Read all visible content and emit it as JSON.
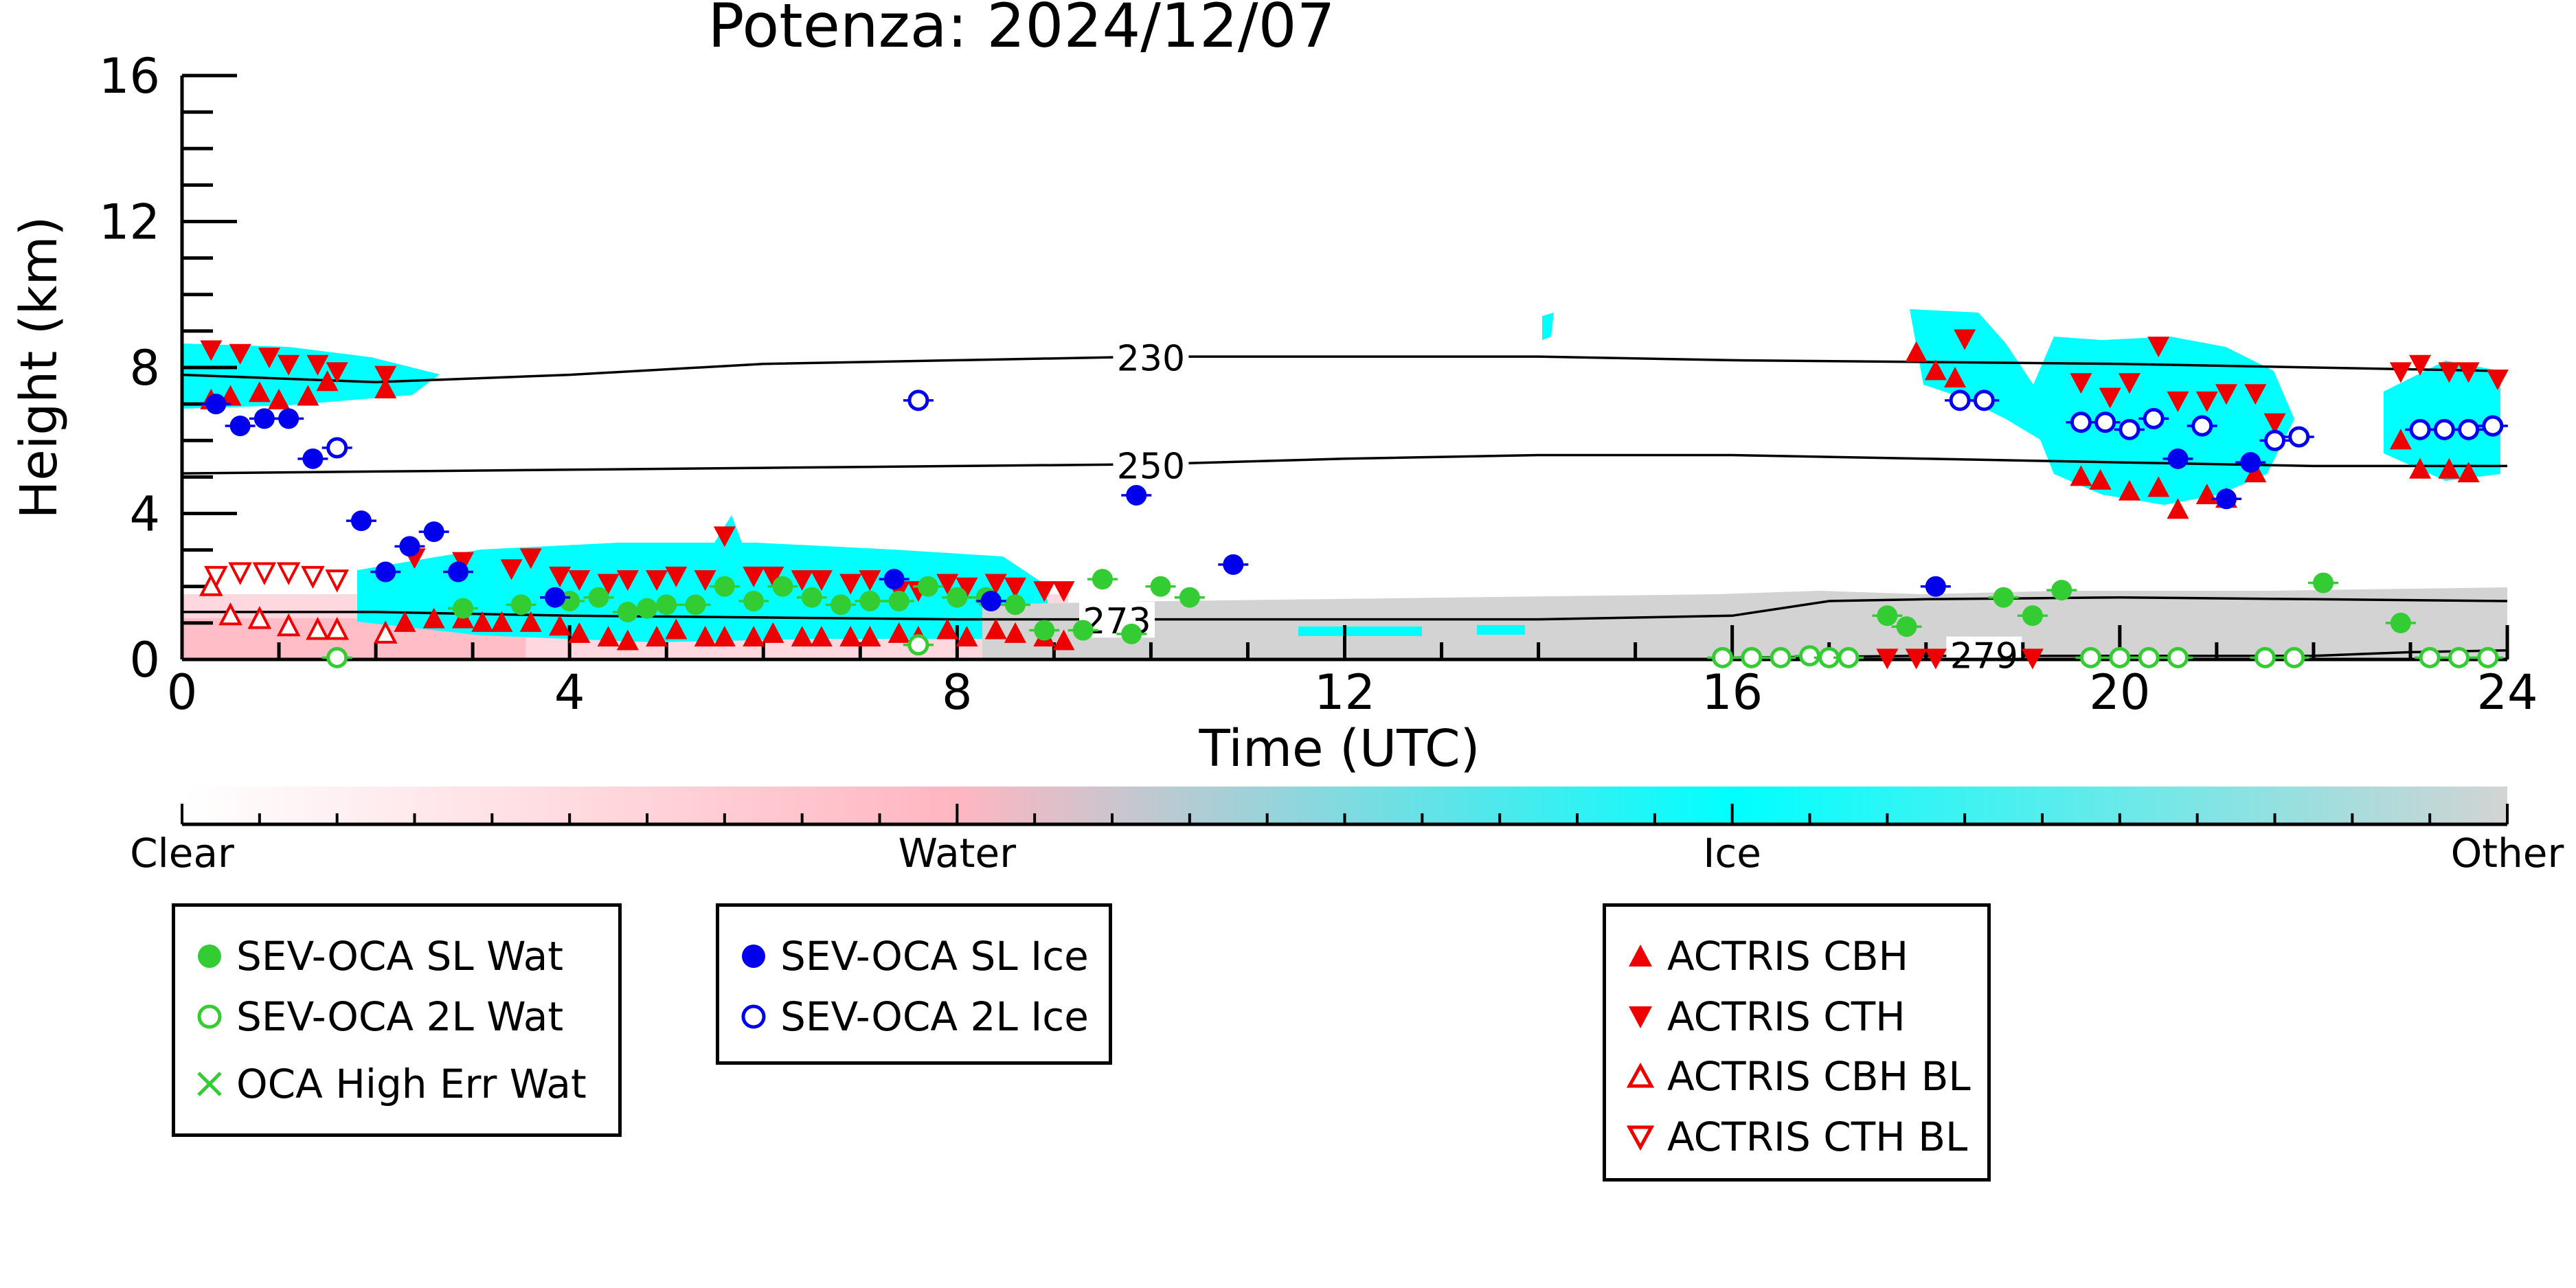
{
  "chart_data": {
    "type": "scatter",
    "title": "Potenza: 2024/12/07",
    "xlabel": "Time (UTC)",
    "ylabel": "Height (km)",
    "xlim": [
      0,
      24
    ],
    "ylim": [
      0,
      16
    ],
    "x_ticks": [
      "0",
      "4",
      "8",
      "12",
      "16",
      "20",
      "24"
    ],
    "y_ticks": [
      "0",
      "4",
      "8",
      "12",
      "16"
    ],
    "colorbar": {
      "labels": [
        "Clear",
        "Water",
        "Ice",
        "Other"
      ],
      "colors": [
        "#ffffff",
        "#ffb6c1",
        "#00ffff",
        "#d3d3d3"
      ]
    },
    "isotherms": [
      {
        "label": "230",
        "label_at": [
          10.0,
          8.25
        ],
        "points": [
          [
            0,
            7.8
          ],
          [
            2,
            7.6
          ],
          [
            4,
            7.8
          ],
          [
            6,
            8.1
          ],
          [
            8,
            8.2
          ],
          [
            10,
            8.3
          ],
          [
            12,
            8.3
          ],
          [
            14,
            8.3
          ],
          [
            16,
            8.2
          ],
          [
            18,
            8.15
          ],
          [
            20,
            8.1
          ],
          [
            22,
            8.0
          ],
          [
            24,
            7.9
          ]
        ]
      },
      {
        "label": "250",
        "label_at": [
          10.0,
          5.3
        ],
        "points": [
          [
            0,
            5.1
          ],
          [
            2,
            5.15
          ],
          [
            4,
            5.2
          ],
          [
            6,
            5.25
          ],
          [
            8,
            5.3
          ],
          [
            10,
            5.35
          ],
          [
            12,
            5.5
          ],
          [
            14,
            5.6
          ],
          [
            16,
            5.6
          ],
          [
            18,
            5.5
          ],
          [
            20,
            5.4
          ],
          [
            22,
            5.3
          ],
          [
            24,
            5.3
          ]
        ]
      },
      {
        "label": "273",
        "label_at": [
          9.65,
          1.05
        ],
        "points": [
          [
            0,
            1.3
          ],
          [
            2,
            1.3
          ],
          [
            4,
            1.2
          ],
          [
            6,
            1.15
          ],
          [
            8,
            1.1
          ],
          [
            10,
            1.1
          ],
          [
            12,
            1.1
          ],
          [
            14,
            1.1
          ],
          [
            16,
            1.2
          ],
          [
            17,
            1.6
          ],
          [
            18,
            1.65
          ],
          [
            20,
            1.7
          ],
          [
            22,
            1.65
          ],
          [
            24,
            1.6
          ]
        ]
      },
      {
        "label": "279",
        "label_at": [
          18.6,
          0.1
        ],
        "points": [
          [
            16,
            0.05
          ],
          [
            18,
            0.1
          ],
          [
            20,
            0.1
          ],
          [
            22,
            0.1
          ],
          [
            23,
            0.2
          ],
          [
            24,
            0.25
          ]
        ]
      }
    ],
    "series": [
      {
        "name": "SEV-OCA SL Wat",
        "color": "#33cc33",
        "marker": "filled-circle",
        "x": [
          2.9,
          3.5,
          4.0,
          4.3,
          4.6,
          4.8,
          5.0,
          5.3,
          5.6,
          5.9,
          6.2,
          6.5,
          6.8,
          7.1,
          7.4,
          7.7,
          8.0,
          8.3,
          8.6,
          8.9,
          9.3,
          9.5,
          9.8,
          10.1,
          10.4,
          17.6,
          17.8,
          18.8,
          19.1,
          19.4,
          22.1,
          22.9
        ],
        "y": [
          1.4,
          1.5,
          1.6,
          1.7,
          1.3,
          1.4,
          1.5,
          1.5,
          2.0,
          1.6,
          2.0,
          1.7,
          1.5,
          1.6,
          1.6,
          2.0,
          1.7,
          1.7,
          1.5,
          0.8,
          0.8,
          2.2,
          0.7,
          2.0,
          1.7,
          1.2,
          0.9,
          1.7,
          1.2,
          1.9,
          2.1,
          1.0
        ]
      },
      {
        "name": "SEV-OCA 2L Wat",
        "color": "#33cc33",
        "marker": "open-circle",
        "x": [
          1.6,
          7.6,
          15.9,
          16.2,
          16.5,
          16.8,
          17.0,
          17.2,
          19.7,
          20.0,
          20.3,
          20.6,
          21.5,
          21.8,
          23.2,
          23.5,
          23.8
        ],
        "y": [
          0.05,
          0.4,
          0.05,
          0.05,
          0.05,
          0.1,
          0.05,
          0.05,
          0.05,
          0.05,
          0.05,
          0.05,
          0.05,
          0.05,
          0.05,
          0.05,
          0.05
        ]
      },
      {
        "name": "OCA High Err Wat",
        "color": "#33cc33",
        "marker": "x",
        "x": [],
        "y": []
      },
      {
        "name": "SEV-OCA SL Ice",
        "color": "#0000ee",
        "marker": "filled-circle",
        "x": [
          0.35,
          0.6,
          0.85,
          1.1,
          1.35,
          1.85,
          2.1,
          2.35,
          2.6,
          2.85,
          3.85,
          7.35,
          8.35,
          9.85,
          10.85,
          18.1,
          20.6,
          21.1,
          21.35
        ],
        "y": [
          7.0,
          6.4,
          6.6,
          6.6,
          5.5,
          3.8,
          2.4,
          3.1,
          3.5,
          2.4,
          1.7,
          2.2,
          1.6,
          4.5,
          2.6,
          2.0,
          5.5,
          4.4,
          5.4
        ]
      },
      {
        "name": "SEV-OCA 2L Ice",
        "color": "#0000ee",
        "marker": "open-circle",
        "x": [
          1.6,
          7.6,
          18.35,
          18.6,
          19.6,
          19.85,
          20.1,
          20.35,
          20.85,
          21.6,
          21.85,
          23.1,
          23.35,
          23.6,
          23.85
        ],
        "y": [
          5.8,
          7.1,
          7.1,
          7.1,
          6.5,
          6.5,
          6.3,
          6.6,
          6.4,
          6.0,
          6.1,
          6.3,
          6.3,
          6.3,
          6.4
        ]
      },
      {
        "name": "ACTRIS CBH",
        "color": "#ee0000",
        "marker": "triangle-up",
        "x": [
          0.3,
          0.5,
          0.8,
          1.0,
          1.3,
          1.5,
          2.1,
          2.3,
          2.6,
          2.9,
          3.1,
          3.3,
          3.6,
          3.9,
          4.1,
          4.4,
          4.6,
          4.9,
          5.1,
          5.4,
          5.6,
          5.9,
          6.1,
          6.4,
          6.6,
          6.9,
          7.1,
          7.4,
          7.6,
          7.9,
          8.1,
          8.4,
          8.6,
          8.9,
          9.1,
          17.9,
          18.1,
          18.3,
          19.6,
          19.8,
          20.1,
          20.4,
          20.6,
          20.9,
          21.1,
          21.4,
          22.9,
          23.1,
          23.4,
          23.6
        ],
        "y": [
          7.1,
          7.2,
          7.3,
          7.1,
          7.2,
          7.6,
          7.4,
          1.0,
          1.1,
          1.1,
          1.0,
          1.0,
          1.0,
          0.9,
          0.7,
          0.6,
          0.5,
          0.6,
          0.8,
          0.6,
          0.6,
          0.6,
          0.7,
          0.6,
          0.6,
          0.6,
          0.6,
          0.7,
          0.6,
          0.8,
          0.6,
          0.8,
          0.7,
          0.6,
          0.5,
          8.4,
          7.9,
          7.7,
          5.0,
          4.9,
          4.6,
          4.7,
          4.1,
          4.5,
          4.4,
          5.1,
          6.0,
          5.2,
          5.2,
          5.1
        ]
      },
      {
        "name": "ACTRIS CTH",
        "color": "#ee0000",
        "marker": "triangle-down",
        "x": [
          0.3,
          0.6,
          0.9,
          1.1,
          1.4,
          1.6,
          2.1,
          2.4,
          2.9,
          3.4,
          3.6,
          3.9,
          4.1,
          4.4,
          4.6,
          4.9,
          5.1,
          5.4,
          5.6,
          5.9,
          6.1,
          6.4,
          6.6,
          6.9,
          7.1,
          7.4,
          7.6,
          7.9,
          8.1,
          8.4,
          8.6,
          8.9,
          9.1,
          17.6,
          17.9,
          18.1,
          18.4,
          19.1,
          19.6,
          19.9,
          20.1,
          20.4,
          20.6,
          20.9,
          21.1,
          21.4,
          21.6,
          22.9,
          23.1,
          23.4,
          23.6,
          23.9
        ],
        "y": [
          8.5,
          8.4,
          8.3,
          8.1,
          8.1,
          7.9,
          7.8,
          2.8,
          2.7,
          2.5,
          2.8,
          2.3,
          2.2,
          2.1,
          2.2,
          2.2,
          2.3,
          2.2,
          3.4,
          2.3,
          2.3,
          2.2,
          2.2,
          2.1,
          2.2,
          1.9,
          1.9,
          2.1,
          2.0,
          2.1,
          2.0,
          1.9,
          1.9,
          0.05,
          0.05,
          0.05,
          8.8,
          0.05,
          7.6,
          7.2,
          7.6,
          8.6,
          7.1,
          7.1,
          7.3,
          7.3,
          6.5,
          7.9,
          8.1,
          7.9,
          7.9,
          7.7
        ]
      },
      {
        "name": "ACTRIS CBH BL",
        "color": "#ee0000",
        "marker": "open-triangle-up",
        "x": [
          0.3,
          0.5,
          0.8,
          1.1,
          1.4,
          1.6,
          2.1
        ],
        "y": [
          2.0,
          1.2,
          1.1,
          0.9,
          0.8,
          0.8,
          0.7
        ]
      },
      {
        "name": "ACTRIS CTH BL",
        "color": "#ee0000",
        "marker": "open-triangle-down",
        "x": [
          0.35,
          0.6,
          0.85,
          1.1,
          1.35,
          1.6
        ],
        "y": [
          2.3,
          2.4,
          2.4,
          2.4,
          2.3,
          2.2
        ]
      }
    ]
  },
  "legends": [
    {
      "items": [
        {
          "label": "SEV-OCA SL Wat",
          "marker": "filled-circle",
          "color": "#33cc33"
        },
        {
          "label": "SEV-OCA 2L Wat",
          "marker": "open-circle",
          "color": "#33cc33"
        },
        {
          "label": "OCA High Err Wat",
          "marker": "x",
          "color": "#33cc33"
        }
      ]
    },
    {
      "items": [
        {
          "label": "SEV-OCA SL Ice",
          "marker": "filled-circle",
          "color": "#0000ee"
        },
        {
          "label": "SEV-OCA 2L Ice",
          "marker": "open-circle",
          "color": "#0000ee"
        }
      ]
    },
    {
      "items": [
        {
          "label": "ACTRIS CBH",
          "marker": "triangle-up",
          "color": "#ee0000"
        },
        {
          "label": "ACTRIS CTH",
          "marker": "triangle-down",
          "color": "#ee0000"
        },
        {
          "label": "ACTRIS CBH BL",
          "marker": "open-triangle-up",
          "color": "#ee0000"
        },
        {
          "label": "ACTRIS CTH BL",
          "marker": "open-triangle-down",
          "color": "#ee0000"
        }
      ]
    }
  ]
}
